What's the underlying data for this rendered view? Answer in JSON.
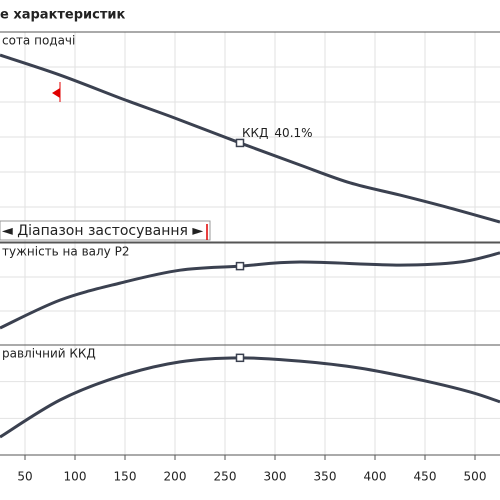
{
  "title": "е характеристик",
  "operating_point_x": 265,
  "chart_data": [
    {
      "type": "line",
      "label": "сота подачі",
      "color": "#3b4150",
      "x": [
        25,
        85,
        150,
        200,
        265,
        325,
        375,
        425,
        475,
        525
      ],
      "values": [
        5.34,
        4.77,
        4.06,
        3.54,
        2.83,
        2.2,
        1.69,
        1.34,
        0.97,
        0.57
      ],
      "xlim": [
        25,
        525
      ],
      "ylim": [
        0,
        6
      ],
      "annotation": "ККД",
      "annotation_value": "40.1%",
      "range_label": "◄ Діапазон застосування ►",
      "range_marker_x": 85,
      "range_color": "#e00000"
    },
    {
      "type": "line",
      "label": "тужність на валу P2",
      "color": "#3b4150",
      "x": [
        25,
        85,
        145,
        205,
        265,
        325,
        425,
        485,
        525
      ],
      "values": [
        0.5,
        1.32,
        1.82,
        2.2,
        2.32,
        2.44,
        2.35,
        2.44,
        2.71
      ],
      "xlim": [
        25,
        525
      ],
      "ylim": [
        0,
        3
      ]
    },
    {
      "type": "line",
      "label": "равлічний ККД",
      "color": "#3b4150",
      "x": [
        25,
        85,
        145,
        205,
        265,
        325,
        385,
        445,
        495,
        525
      ],
      "values": [
        0.49,
        1.5,
        2.15,
        2.54,
        2.65,
        2.56,
        2.37,
        2.05,
        1.72,
        1.45
      ],
      "xlim": [
        25,
        525
      ],
      "ylim": [
        0,
        3
      ],
      "xticks": [
        50,
        100,
        150,
        200,
        250,
        300,
        350,
        400,
        450,
        500
      ]
    }
  ]
}
